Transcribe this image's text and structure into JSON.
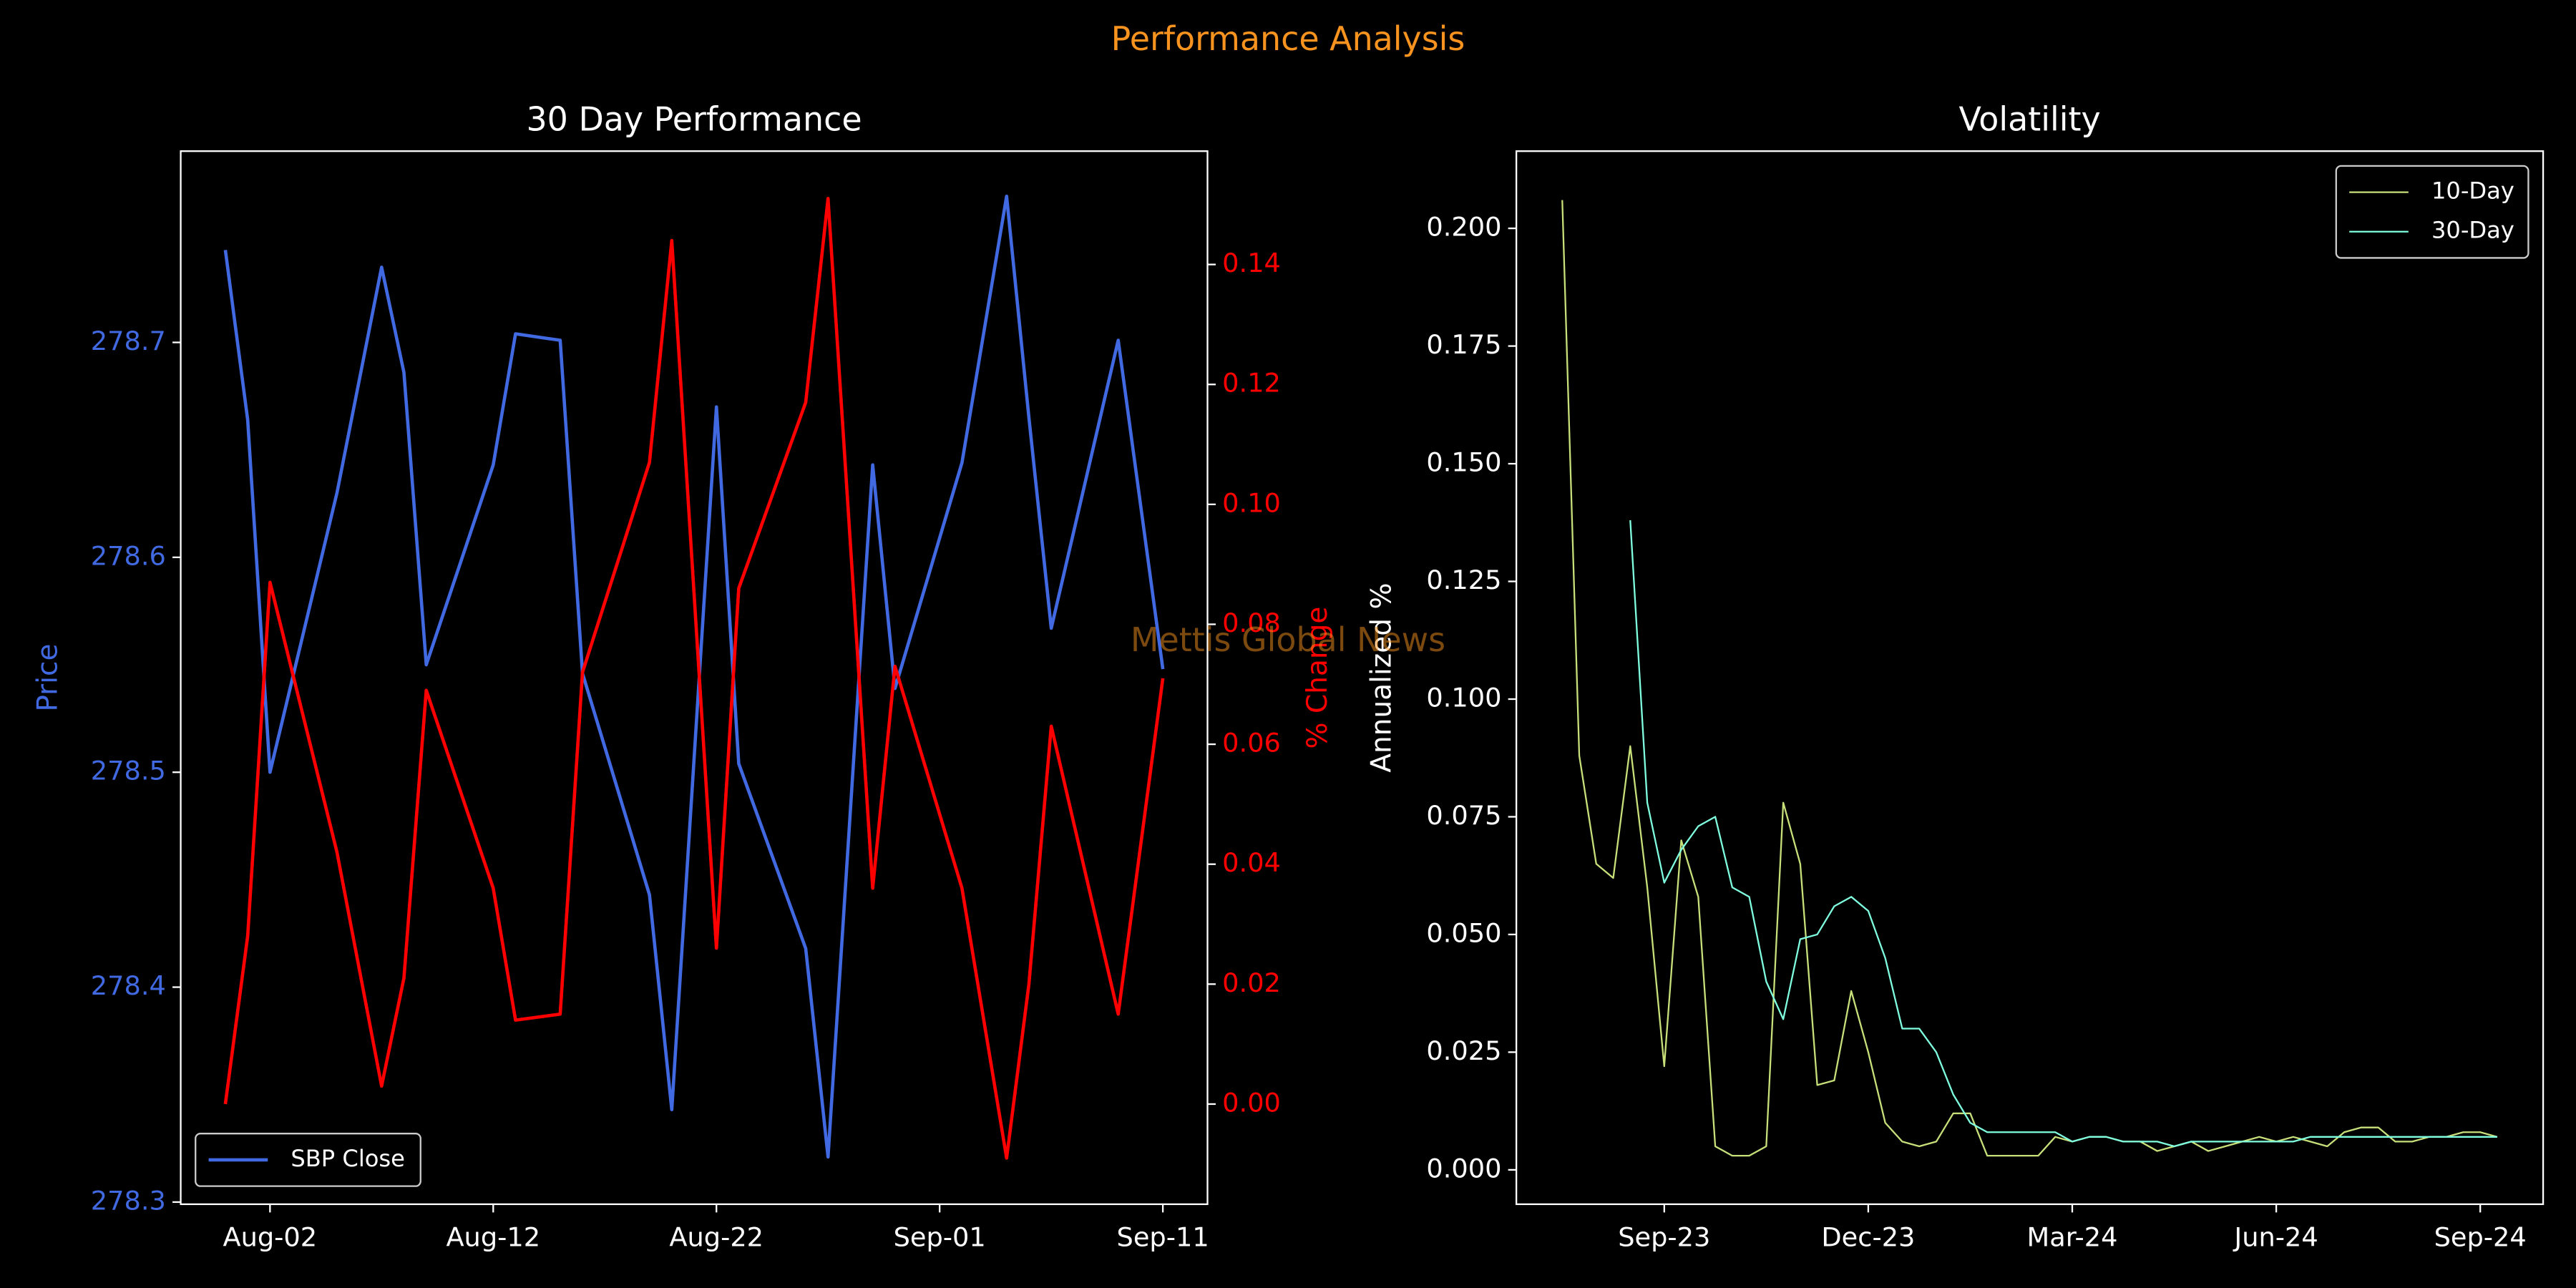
{
  "title": "Performance Analysis",
  "watermark": "Mettis Global News",
  "chart_data": [
    {
      "type": "line",
      "title": "30 Day Performance",
      "ylabel": "Price",
      "y2label": "% Change",
      "x": [
        "Jul-31",
        "Aug-01",
        "Aug-02",
        "Aug-05",
        "Aug-07",
        "Aug-08",
        "Aug-09",
        "Aug-12",
        "Aug-13",
        "Aug-15",
        "Aug-16",
        "Aug-19",
        "Aug-20",
        "Aug-22",
        "Aug-23",
        "Aug-26",
        "Aug-27",
        "Aug-29",
        "Aug-30",
        "Sep-02",
        "Sep-04",
        "Sep-05",
        "Sep-06",
        "Sep-09",
        "Sep-11"
      ],
      "xlim": [
        "Jul-29",
        "Sep-13"
      ],
      "xticks": [
        "Aug-02",
        "Aug-12",
        "Aug-22",
        "Sep-01",
        "Sep-11"
      ],
      "series": [
        {
          "name": "SBP Close",
          "color": "#4169e1",
          "values": [
            278.743,
            278.664,
            278.5,
            278.63,
            278.735,
            278.686,
            278.55,
            278.643,
            278.704,
            278.701,
            278.546,
            278.443,
            278.343,
            278.67,
            278.504,
            278.418,
            278.321,
            278.643,
            278.539,
            278.644,
            278.768,
            278.665,
            278.567,
            278.701,
            278.548
          ]
        },
        {
          "color": "#ff0000",
          "axis": "y2",
          "values": [
            0.0,
            0.028,
            0.087,
            0.042,
            0.003,
            0.021,
            0.069,
            0.036,
            0.014,
            0.015,
            0.072,
            0.107,
            0.144,
            0.026,
            0.086,
            0.117,
            0.151,
            0.036,
            0.073,
            0.036,
            -0.009,
            0.02,
            0.063,
            0.015,
            0.071
          ]
        }
      ],
      "ylim": [
        278.299,
        278.789
      ],
      "yticks": [
        278.3,
        278.4,
        278.5,
        278.6,
        278.7
      ],
      "y2lim": [
        -0.0167,
        0.1589
      ],
      "y2ticks": [
        {
          "value": 0,
          "label": "0.00"
        },
        {
          "value": 0.02,
          "label": "0.02"
        },
        {
          "value": 0.04,
          "label": "0.04"
        },
        {
          "value": 0.06,
          "label": "0.06"
        },
        {
          "value": 0.08,
          "label": "0.08"
        },
        {
          "value": 0.1,
          "label": "0.10"
        },
        {
          "value": 0.12,
          "label": "0.12"
        },
        {
          "value": 0.14,
          "label": "0.14"
        }
      ],
      "legend": "lower left"
    },
    {
      "type": "line",
      "title": "Volatility",
      "ylabel": "Annualized %",
      "categories": [
        null,
        null,
        null,
        null,
        null,
        null,
        "Sep-23",
        null,
        null,
        null,
        null,
        null,
        null,
        null,
        null,
        null,
        null,
        null,
        "Dec-23",
        null,
        null,
        null,
        null,
        null,
        null,
        null,
        null,
        null,
        null,
        null,
        "Mar-24",
        null,
        null,
        null,
        null,
        null,
        null,
        null,
        null,
        null,
        null,
        null,
        "Jun-24",
        null,
        null,
        null,
        null,
        null,
        null,
        null,
        null,
        null,
        null,
        null,
        "Sep-24",
        null
      ],
      "series": [
        {
          "name": "10-Day",
          "color": "#c8e07a",
          "values": [
            0.206,
            0.088,
            0.065,
            0.062,
            0.09,
            0.06,
            0.022,
            0.07,
            0.058,
            0.005,
            0.003,
            0.003,
            0.005,
            0.078,
            0.065,
            0.018,
            0.019,
            0.038,
            0.025,
            0.01,
            0.006,
            0.005,
            0.006,
            0.012,
            0.012,
            0.003,
            0.003,
            0.003,
            0.003,
            0.007,
            0.006,
            0.007,
            0.007,
            0.006,
            0.006,
            0.004,
            0.005,
            0.006,
            0.004,
            0.005,
            0.006,
            0.007,
            0.006,
            0.007,
            0.006,
            0.005,
            0.008,
            0.009,
            0.009,
            0.006,
            0.006,
            0.007,
            0.007,
            0.008,
            0.008,
            0.007
          ]
        },
        {
          "name": "30-Day",
          "color": "#7fffe0",
          "values": [
            null,
            null,
            null,
            null,
            0.138,
            0.078,
            0.061,
            0.068,
            0.073,
            0.075,
            0.06,
            0.058,
            0.04,
            0.032,
            0.049,
            0.05,
            0.056,
            0.058,
            0.055,
            0.045,
            0.03,
            0.03,
            0.025,
            0.016,
            0.01,
            0.008,
            0.008,
            0.008,
            0.008,
            0.008,
            0.006,
            0.007,
            0.007,
            0.006,
            0.006,
            0.006,
            0.005,
            0.006,
            0.006,
            0.006,
            0.006,
            0.006,
            0.006,
            0.006,
            0.007,
            0.007,
            0.007,
            0.007,
            0.007,
            0.007,
            0.007,
            0.007,
            0.007,
            0.007,
            0.007,
            0.007
          ]
        }
      ],
      "ylim": [
        -0.0073,
        0.2164
      ],
      "yticks": [
        {
          "value": 0,
          "label": "0.000"
        },
        {
          "value": 0.025,
          "label": "0.025"
        },
        {
          "value": 0.05,
          "label": "0.050"
        },
        {
          "value": 0.075,
          "label": "0.075"
        },
        {
          "value": 0.1,
          "label": "0.100"
        },
        {
          "value": 0.125,
          "label": "0.125"
        },
        {
          "value": 0.15,
          "label": "0.150"
        },
        {
          "value": 0.175,
          "label": "0.175"
        },
        {
          "value": 0.2,
          "label": "0.200"
        }
      ],
      "legend": "upper right"
    }
  ]
}
